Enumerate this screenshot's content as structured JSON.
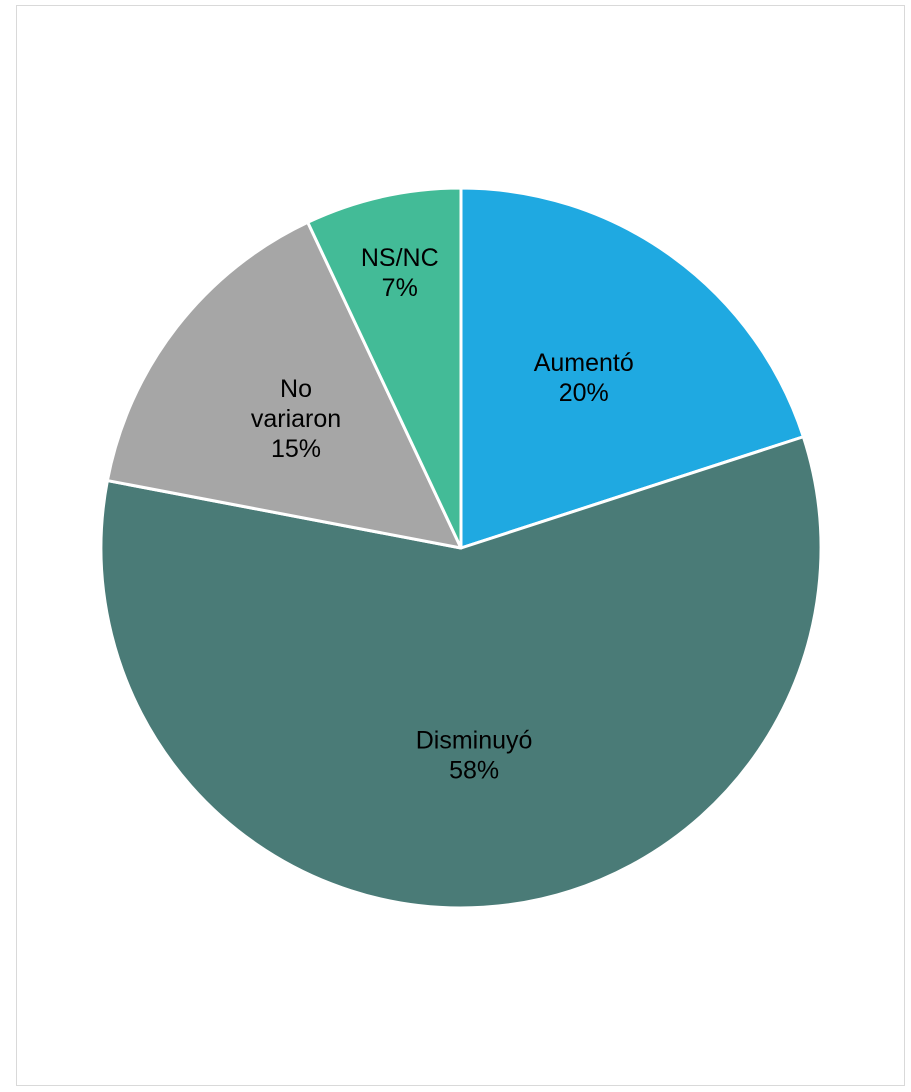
{
  "chart_data": {
    "type": "pie",
    "title": "",
    "start_angle_deg": 0,
    "direction": "clockwise",
    "slice_border_color": "#ffffff",
    "slices": [
      {
        "label": "Aumentó",
        "value": 20,
        "value_label": "20%",
        "color": "#1fa9e1"
      },
      {
        "label": "Disminuyó",
        "value": 58,
        "value_label": "58%",
        "color": "#4a7b77"
      },
      {
        "label": "No variaron",
        "value": 15,
        "value_label": "15%",
        "color": "#a6a6a6"
      },
      {
        "label": "NS/NC",
        "value": 7,
        "value_label": "7%",
        "color": "#43bb97"
      }
    ]
  }
}
